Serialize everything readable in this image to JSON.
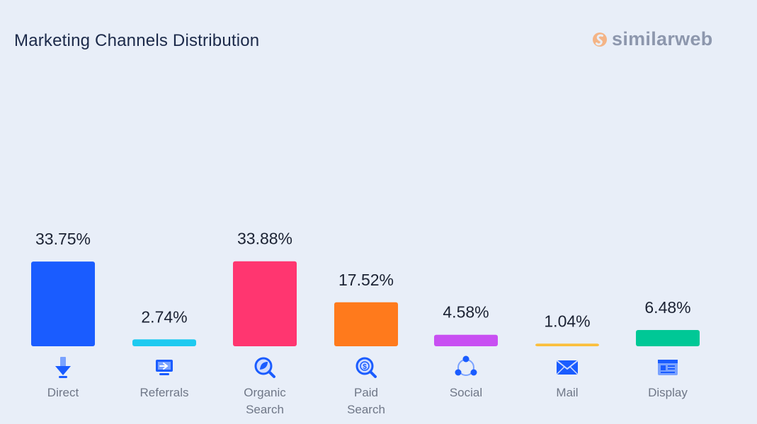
{
  "title": "Marketing Channels Distribution",
  "logo": {
    "text": "similarweb"
  },
  "chart_data": {
    "type": "bar",
    "title": "Marketing Channels Distribution",
    "categories": [
      [
        "Direct"
      ],
      [
        "Referrals"
      ],
      [
        "Organic",
        "Search"
      ],
      [
        "Paid",
        "Search"
      ],
      [
        "Social"
      ],
      [
        "Mail"
      ],
      [
        "Display"
      ]
    ],
    "values": [
      33.75,
      2.74,
      33.88,
      17.52,
      4.58,
      1.04,
      6.48
    ],
    "value_labels": [
      "33.75%",
      "2.74%",
      "33.88%",
      "17.52%",
      "4.58%",
      "1.04%",
      "6.48%"
    ],
    "colors": [
      "#1a5cff",
      "#1ecaf0",
      "#ff3670",
      "#ff7a1c",
      "#c84ff2",
      "#fbbf3c",
      "#00c896"
    ],
    "icons": [
      "direct-arrow-icon",
      "referrals-monitor-icon",
      "organic-search-icon",
      "paid-search-icon",
      "social-network-icon",
      "mail-icon",
      "display-window-icon"
    ],
    "ylim": [
      0,
      34
    ],
    "grid": false,
    "legend": "none"
  }
}
